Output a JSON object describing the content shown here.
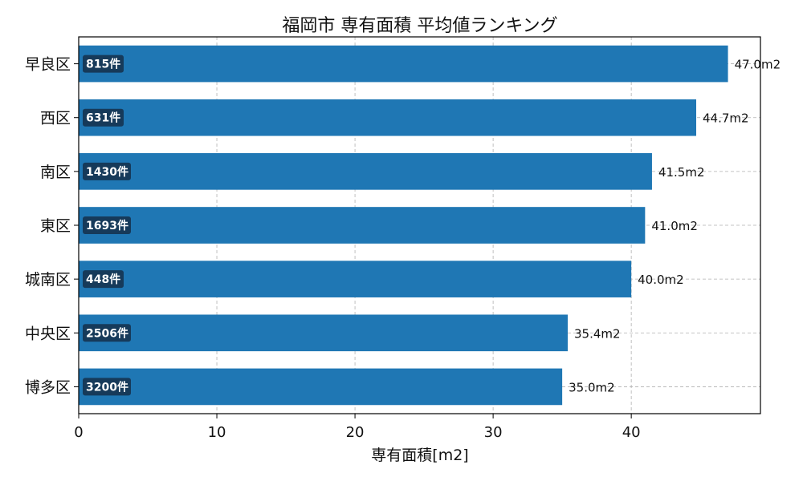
{
  "chart_data": {
    "type": "bar",
    "orientation": "horizontal",
    "title": "福岡市 専有面積 平均値ランキング",
    "xlabel": "専有面積[m2]",
    "ylabel": "",
    "xlim": [
      0,
      49.35
    ],
    "xticks": [
      "0",
      "10",
      "20",
      "30",
      "40"
    ],
    "grid": true,
    "categories": [
      "早良区",
      "西区",
      "南区",
      "東区",
      "城南区",
      "中央区",
      "博多区"
    ],
    "values": [
      47.0,
      44.7,
      41.5,
      41.0,
      40.0,
      35.4,
      35.0
    ],
    "value_labels": [
      "47.0m2",
      "44.7m2",
      "41.5m2",
      "41.0m2",
      "40.0m2",
      "35.4m2",
      "35.0m2"
    ],
    "count_labels": [
      "815件",
      "631件",
      "1430件",
      "1693件",
      "448件",
      "2506件",
      "3200件"
    ],
    "colors": {
      "bar": "#1f77b4",
      "badge": "#163a5a",
      "grid": "#b0b0b0"
    }
  }
}
